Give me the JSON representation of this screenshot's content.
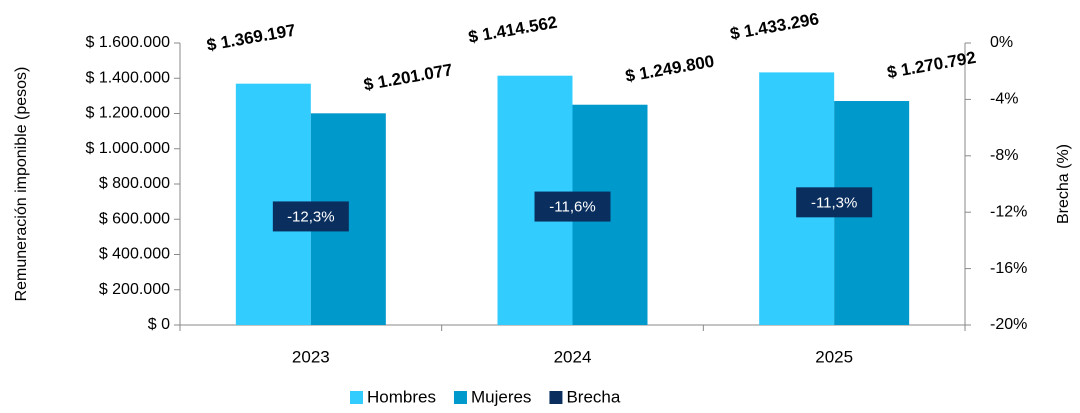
{
  "chart_data": {
    "type": "bar",
    "categories": [
      "2023",
      "2024",
      "2025"
    ],
    "series": [
      {
        "name": "Hombres",
        "color": "#33ccff",
        "values": [
          1369197,
          1414562,
          1433296
        ],
        "value_labels": [
          "$ 1.369.197",
          "$ 1.414.562",
          "$ 1.433.296"
        ]
      },
      {
        "name": "Mujeres",
        "color": "#0099cc",
        "values": [
          1201077,
          1249800,
          1270792
        ],
        "value_labels": [
          "$ 1.201.077",
          "$ 1.249.800",
          "$ 1.270.792"
        ]
      },
      {
        "name": "Brecha",
        "color": "#0a2f5f",
        "axis": "y2",
        "values": [
          -12.3,
          -11.6,
          -11.3
        ],
        "value_labels": [
          "-12,3%",
          "-11,6%",
          "-11,3%"
        ]
      }
    ],
    "y_label": "Remuneración imponible (pesos)",
    "y2_label": "Brecha (%)",
    "ylim": [
      0,
      1600000
    ],
    "yticks": [
      {
        "value": 0,
        "label": "$ 0"
      },
      {
        "value": 200000,
        "label": "$ 200.000"
      },
      {
        "value": 400000,
        "label": "$ 400.000"
      },
      {
        "value": 600000,
        "label": "$ 600.000"
      },
      {
        "value": 800000,
        "label": "$ 800.000"
      },
      {
        "value": 1000000,
        "label": "$ 1.000.000"
      },
      {
        "value": 1200000,
        "label": "$ 1.200.000"
      },
      {
        "value": 1400000,
        "label": "$ 1.400.000"
      },
      {
        "value": 1600000,
        "label": "$ 1.600.000"
      }
    ],
    "y2lim": [
      -20,
      0
    ],
    "y2ticks": [
      {
        "value": -20,
        "label": "-20%"
      },
      {
        "value": -16,
        "label": "-16%"
      },
      {
        "value": -12,
        "label": "-12%"
      },
      {
        "value": -8,
        "label": "-8%"
      },
      {
        "value": -4,
        "label": "-4%"
      },
      {
        "value": 0,
        "label": "0%"
      }
    ],
    "legend": "bottom"
  }
}
